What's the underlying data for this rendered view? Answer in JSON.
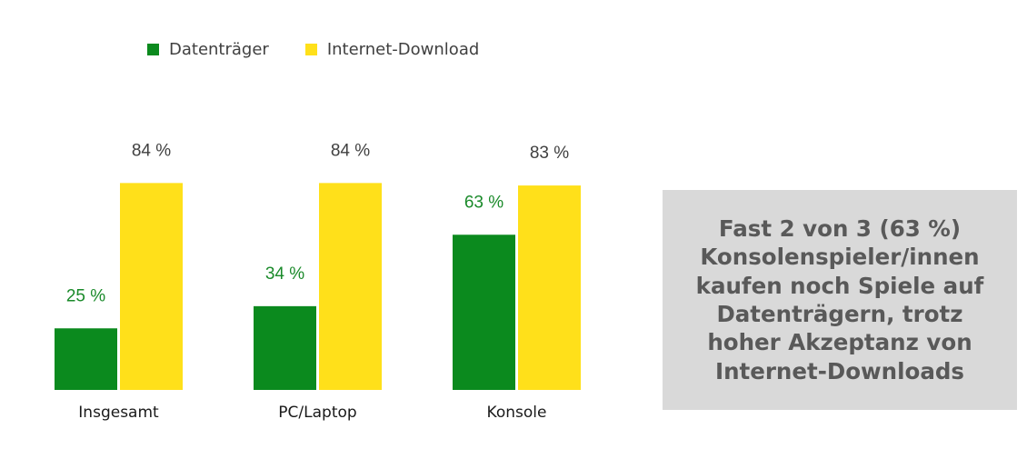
{
  "chart_data": {
    "type": "bar",
    "categories": [
      "Insgesamt",
      "PC/Laptop",
      "Konsole"
    ],
    "series": [
      {
        "name": "Datenträger",
        "values": [
          25,
          34,
          63
        ],
        "labels": [
          "25 %",
          "34 %",
          "63 %"
        ],
        "color": "#0b8a1e",
        "label_color": "#1a8a2a"
      },
      {
        "name": "Internet-Download",
        "values": [
          84,
          84,
          83
        ],
        "labels": [
          "84 %",
          "84 %",
          "83 %"
        ],
        "color": "#ffe01a",
        "label_color": "#404040"
      }
    ],
    "ylim": [
      0,
      100
    ],
    "grid": false,
    "legend_position": "top-left"
  },
  "callout": {
    "lines": [
      "Fast 2 von 3 (63 %)",
      "Konsolenspieler/innen",
      "kaufen noch Spiele auf",
      "Datenträgern, trotz",
      "hoher Akzeptanz von",
      "Internet-Downloads"
    ]
  }
}
